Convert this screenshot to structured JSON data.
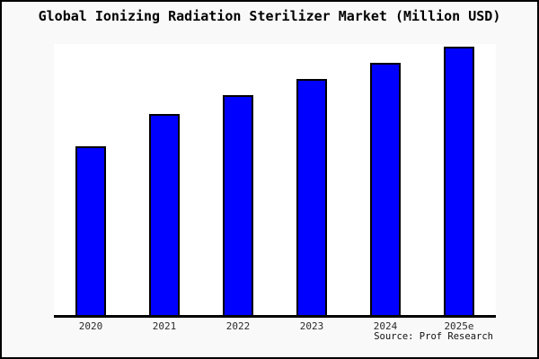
{
  "window": {
    "background": "#f9f9f9",
    "border_color": "#000000"
  },
  "title": "Global Ionizing Radiation Sterilizer Market (Million USD)",
  "source": "Source: Prof Research",
  "colors": {
    "bar_fill": "#0000ff",
    "bar_border": "#000000",
    "plot_background": "#ffffff",
    "axis": "#000000",
    "title_text": "#000000",
    "tick_text": "#2b2b2b"
  },
  "chart_data": {
    "type": "bar",
    "title": "Global Ionizing Radiation Sterilizer Market (Million USD)",
    "categories": [
      "2020",
      "2021",
      "2022",
      "2023",
      "2024",
      "2025e"
    ],
    "values": [
      63,
      75,
      82,
      88,
      94,
      100
    ],
    "values_note": "y-axis has no ticks or labels in the image; values are relative bar heights normalized to 2025e = 100",
    "xlabel": "",
    "ylabel": "",
    "ylim": [
      0,
      101
    ],
    "grid": false,
    "legend": false,
    "bar_color": "#0000ff",
    "annotation": "Source: Prof Research"
  }
}
